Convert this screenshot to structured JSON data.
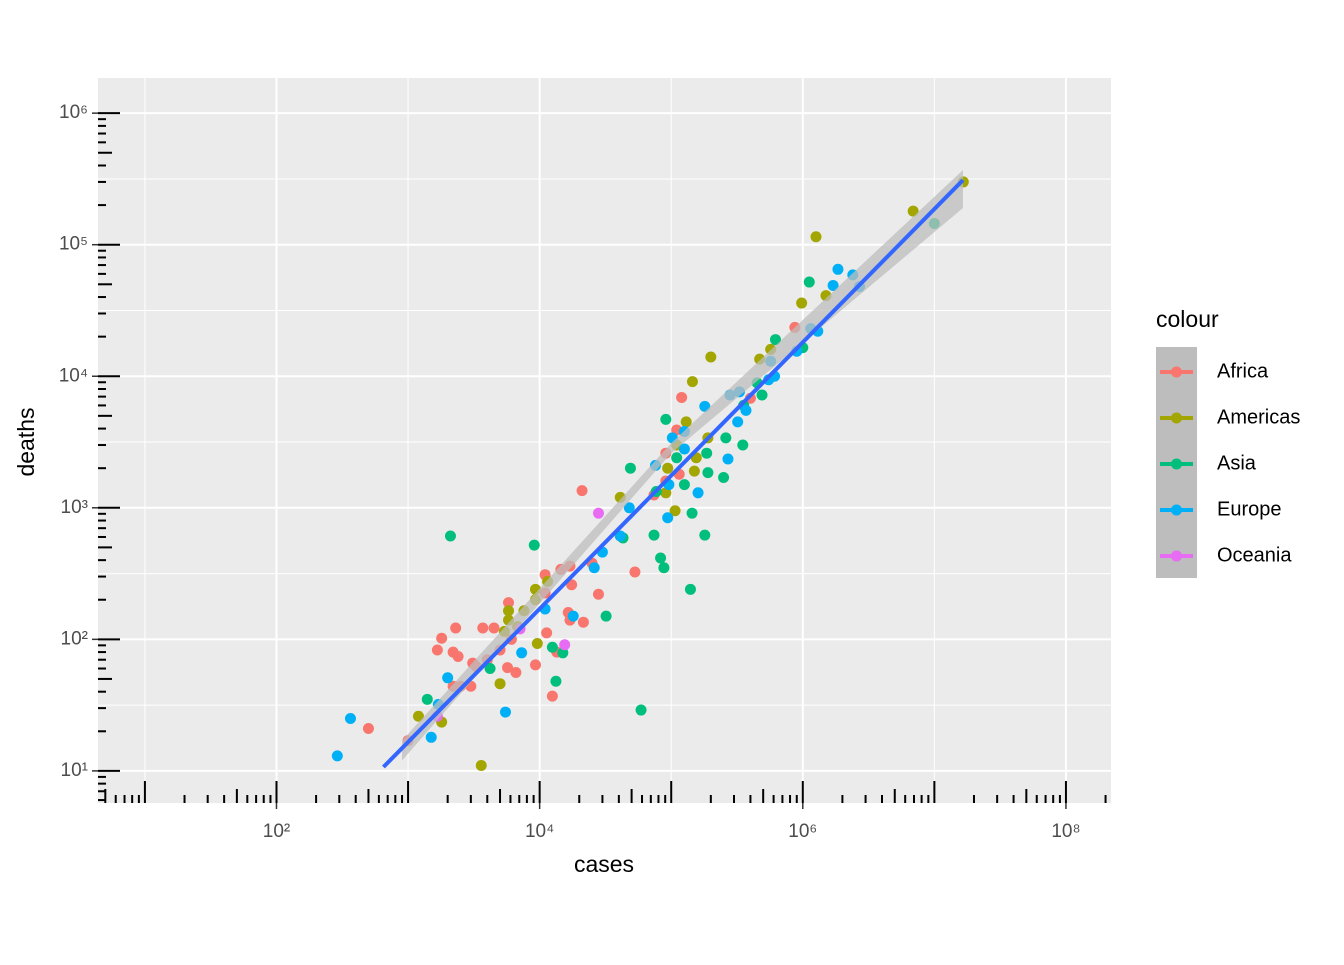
{
  "chart_data": {
    "type": "scatter",
    "xlabel": "cases",
    "ylabel": "deaths",
    "xlog": true,
    "ylog": true,
    "grid": true,
    "xlim": [
      4.4,
      220000000
    ],
    "ylim": [
      5.7,
      1850000
    ],
    "xticks": [
      {
        "value": 100,
        "label": "10²"
      },
      {
        "value": 10000,
        "label": "10⁴"
      },
      {
        "value": 1000000,
        "label": "10⁶"
      },
      {
        "value": 100000000,
        "label": "10⁸"
      }
    ],
    "yticks": [
      {
        "value": 10,
        "label": "10¹"
      },
      {
        "value": 100,
        "label": "10²"
      },
      {
        "value": 1000,
        "label": "10³"
      },
      {
        "value": 10000,
        "label": "10⁴"
      },
      {
        "value": 100000,
        "label": "10⁵"
      },
      {
        "value": 1000000,
        "label": "10⁶"
      }
    ],
    "xminor": [
      10,
      1000,
      100000,
      10000000
    ],
    "yminor": [
      31.6,
      316,
      3160,
      31600,
      316000
    ],
    "legend_title": "colour",
    "legend": "right",
    "series": [
      {
        "name": "Africa",
        "color": "#F8766D",
        "x": [
          870000,
          400000,
          120000,
          110000,
          91000,
          115000,
          91000,
          74000,
          21000,
          25000,
          17000,
          14500,
          11000,
          17500,
          53000,
          28000,
          11000,
          16500,
          17000,
          21500,
          5800,
          11300,
          13500,
          12500,
          9300,
          6100,
          5000,
          5700,
          6600,
          4500,
          3700,
          2300,
          1800,
          1670,
          2200,
          2400,
          3100,
          3300,
          4000,
          2200,
          2500,
          3000,
          500,
          1000
        ],
        "values": [
          23500,
          6800,
          6900,
          3900,
          2600,
          1800,
          1600,
          1250,
          1350,
          380,
          360,
          340,
          310,
          260,
          325,
          220,
          225,
          160,
          140,
          135,
          190,
          112,
          80,
          37,
          64,
          100,
          83,
          61,
          56,
          122,
          122,
          122,
          102,
          83,
          80,
          74,
          66,
          62,
          70,
          44,
          44,
          44,
          21,
          17
        ]
      },
      {
        "name": "Americas",
        "color": "#A3A500",
        "x": [
          16600000,
          6900000,
          1260000,
          980000,
          1500000,
          570000,
          470000,
          200000,
          145000,
          130000,
          190000,
          155000,
          110000,
          94000,
          150000,
          107000,
          91000,
          41000,
          11500,
          9300,
          9300,
          7600,
          5800,
          5800,
          9600,
          6800,
          5400,
          5000,
          1200,
          1800,
          3600
        ],
        "values": [
          300000,
          180000,
          115000,
          36000,
          41000,
          16000,
          13500,
          14000,
          9100,
          4500,
          3400,
          2400,
          3000,
          2000,
          1900,
          950,
          1300,
          1200,
          275,
          240,
          200,
          165,
          140,
          165,
          93,
          125,
          115,
          46,
          26,
          23.5,
          11
        ]
      },
      {
        "name": "Asia",
        "color": "#00BF7D",
        "x": [
          10000000,
          1120000,
          620000,
          1000000,
          450000,
          490000,
          355000,
          350000,
          260000,
          250000,
          190000,
          186000,
          180000,
          140000,
          144000,
          126000,
          91000,
          110000,
          77000,
          74000,
          83000,
          88000,
          49000,
          43000,
          32000,
          9100,
          12500,
          15000,
          13300,
          59000,
          2100,
          4200,
          1400
        ],
        "values": [
          145000,
          52000,
          19000,
          16500,
          8900,
          7200,
          6000,
          3000,
          3400,
          1700,
          1850,
          2600,
          620,
          240,
          910,
          1500,
          4700,
          2400,
          1330,
          620,
          415,
          350,
          2000,
          590,
          150,
          520,
          87,
          79,
          48,
          29,
          610,
          60,
          35
        ]
      },
      {
        "name": "Europe",
        "color": "#00B0F6",
        "x": [
          2700000,
          2400000,
          1850000,
          1700000,
          1300000,
          1150000,
          900000,
          570000,
          610000,
          550000,
          370000,
          330000,
          280000,
          320000,
          270000,
          180000,
          160000,
          126000,
          102000,
          126000,
          96000,
          94000,
          76000,
          48000,
          41000,
          30000,
          26000,
          18000,
          11000,
          7300,
          5500,
          2000,
          1700,
          1500,
          365,
          290
        ],
        "values": [
          48000,
          59000,
          65000,
          49000,
          22000,
          23000,
          15500,
          13000,
          10000,
          9400,
          5500,
          7600,
          7200,
          4500,
          2350,
          5900,
          1300,
          3800,
          3400,
          2800,
          1500,
          840,
          2100,
          1000,
          610,
          460,
          350,
          150,
          170,
          79,
          28,
          51,
          32,
          18,
          25,
          13
        ]
      },
      {
        "name": "Oceania",
        "color": "#E76BF3",
        "x": [
          28000,
          15500,
          1670,
          7100
        ],
        "values": [
          910,
          91,
          26,
          120
        ]
      }
    ],
    "trend": {
      "color": "#3366FF",
      "x": [
        650,
        16500000
      ],
      "values": [
        10.7,
        310000
      ]
    },
    "band": {
      "color": "#BDBDBD",
      "x": [
        900,
        100000,
        16500000
      ],
      "lower": [
        12,
        2600,
        190000
      ],
      "upper": [
        17,
        3100,
        370000
      ]
    }
  }
}
